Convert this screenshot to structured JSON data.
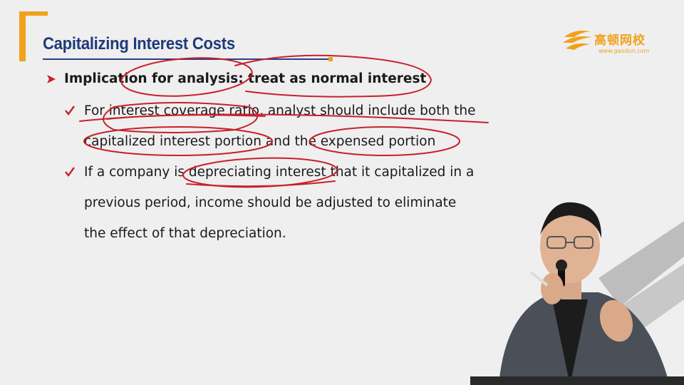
{
  "slide": {
    "title": "Capitalizing Interest Costs",
    "heading": "Implication for analysis: treat as normal interest",
    "bullets": [
      {
        "lines": [
          "For interest coverage ratio, analyst should include both the",
          "capitalized interest portion and the expensed portion"
        ]
      },
      {
        "lines": [
          "If a company is depreciating interest that it capitalized in a",
          "previous period, income should be adjusted to eliminate",
          "the effect of that depreciation."
        ]
      }
    ]
  },
  "logo": {
    "name": "高顿网校",
    "url": "www.gaodun.com"
  },
  "colors": {
    "accent": "#f0a21b",
    "title": "#1f3a7a",
    "ink": "#c8202a",
    "background": "#efefef"
  }
}
